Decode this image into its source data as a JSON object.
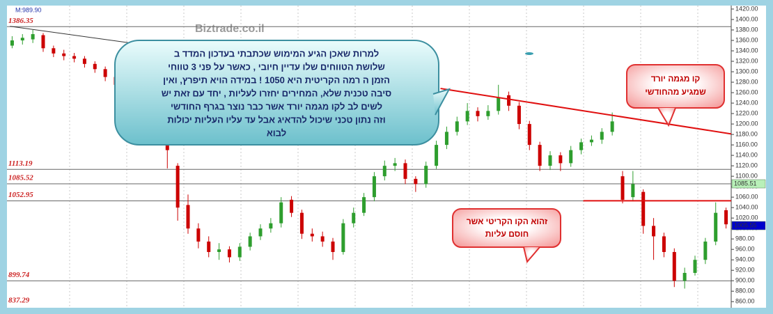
{
  "chart_data": {
    "type": "candlestick",
    "info": "M:989.90",
    "watermark": "Biztrade.co.il",
    "up_color": "#2e9e2e",
    "down_color": "#cc0000",
    "open": [
      1350,
      1360,
      1362,
      1370,
      1345,
      1335,
      1330,
      1325,
      1315,
      1305,
      1290,
      1275,
      1255,
      1230,
      1205,
      1180,
      1120,
      1045,
      1000,
      975,
      955,
      960,
      945,
      965,
      985,
      1000,
      1010,
      1055,
      1030,
      990,
      985,
      975,
      955,
      1010,
      1030,
      1060,
      1100,
      1120,
      1125,
      1095,
      1085,
      1120,
      1160,
      1185,
      1205,
      1225,
      1215,
      1225,
      1255,
      1235,
      1200,
      1160,
      1120,
      1140,
      1125,
      1150,
      1165,
      1170,
      1185,
      1100,
      1060,
      1070,
      1005,
      985,
      955,
      900,
      915,
      940,
      975,
      1035
    ],
    "high": [
      1368,
      1372,
      1380,
      1374,
      1350,
      1342,
      1336,
      1330,
      1320,
      1310,
      1296,
      1280,
      1262,
      1238,
      1212,
      1186,
      1125,
      1065,
      1010,
      985,
      972,
      966,
      972,
      992,
      1008,
      1020,
      1060,
      1062,
      1036,
      1000,
      994,
      982,
      1018,
      1040,
      1068,
      1108,
      1130,
      1135,
      1132,
      1100,
      1128,
      1168,
      1195,
      1214,
      1240,
      1232,
      1236,
      1275,
      1262,
      1242,
      1206,
      1166,
      1148,
      1146,
      1158,
      1172,
      1178,
      1192,
      1222,
      1110,
      1110,
      1075,
      1020,
      992,
      962,
      925,
      948,
      982,
      1050,
      1040
    ],
    "low": [
      1345,
      1352,
      1355,
      1338,
      1328,
      1322,
      1318,
      1308,
      1298,
      1282,
      1268,
      1248,
      1222,
      1198,
      1170,
      1115,
      1015,
      990,
      962,
      945,
      940,
      935,
      938,
      958,
      978,
      992,
      1002,
      1022,
      980,
      975,
      965,
      940,
      950,
      1002,
      1024,
      1052,
      1092,
      1110,
      1085,
      1070,
      1078,
      1114,
      1152,
      1178,
      1198,
      1205,
      1208,
      1218,
      1225,
      1190,
      1150,
      1110,
      1112,
      1110,
      1118,
      1142,
      1158,
      1162,
      1178,
      1048,
      1052,
      990,
      940,
      945,
      888,
      885,
      910,
      932,
      968,
      1000
    ],
    "close": [
      1360,
      1365,
      1372,
      1345,
      1335,
      1330,
      1325,
      1315,
      1305,
      1290,
      1275,
      1255,
      1230,
      1205,
      1180,
      1150,
      1040,
      1000,
      975,
      955,
      960,
      945,
      965,
      985,
      1000,
      1010,
      1050,
      1030,
      990,
      985,
      975,
      955,
      1010,
      1030,
      1060,
      1100,
      1120,
      1125,
      1095,
      1085,
      1120,
      1160,
      1185,
      1205,
      1225,
      1215,
      1225,
      1250,
      1235,
      1200,
      1160,
      1120,
      1140,
      1125,
      1150,
      1165,
      1170,
      1185,
      1205,
      1055,
      1085,
      1005,
      985,
      955,
      900,
      915,
      940,
      975,
      1030,
      1008
    ],
    "ylim": [
      851,
      1424
    ],
    "yticks": [
      {
        "value": 1420,
        "label": "1420.00"
      },
      {
        "value": 1400,
        "label": "1400.00"
      },
      {
        "value": 1380,
        "label": "1380.00"
      },
      {
        "value": 1360,
        "label": "1360.00"
      },
      {
        "value": 1340,
        "label": "1340.00"
      },
      {
        "value": 1320,
        "label": "1320.00"
      },
      {
        "value": 1300,
        "label": "1300.00"
      },
      {
        "value": 1280,
        "label": "1280.00"
      },
      {
        "value": 1260,
        "label": "1260.00"
      },
      {
        "value": 1240,
        "label": "1240.00"
      },
      {
        "value": 1220,
        "label": "1220.00"
      },
      {
        "value": 1200,
        "label": "1200.00"
      },
      {
        "value": 1180,
        "label": "1180.00"
      },
      {
        "value": 1160,
        "label": "1160.00"
      },
      {
        "value": 1140,
        "label": "1140.00"
      },
      {
        "value": 1120,
        "label": "1120.00"
      },
      {
        "value": 1100,
        "label": "1100.00"
      },
      {
        "value": 1080,
        "label": "1080.00"
      },
      {
        "value": 1060,
        "label": "1060.00"
      },
      {
        "value": 1040,
        "label": "1040.00"
      },
      {
        "value": 1020,
        "label": "1020.00"
      },
      {
        "value": 1000,
        "label": "1000.00"
      },
      {
        "value": 980,
        "label": "980.00"
      },
      {
        "value": 960,
        "label": "960.00"
      },
      {
        "value": 940,
        "label": "940.00"
      },
      {
        "value": 920,
        "label": "920.00"
      },
      {
        "value": 900,
        "label": "900.00"
      },
      {
        "value": 880,
        "label": "880.00"
      },
      {
        "value": 860,
        "label": "860.00"
      }
    ],
    "levels": [
      1386.35,
      1113.19,
      1085.52,
      1052.95,
      899.74,
      837.29
    ],
    "price_markers": [
      {
        "value": 1085.51,
        "color": "#b8f0b8",
        "text_color": "#003300"
      },
      {
        "value": 1005.55,
        "color": "#0000cc",
        "text_color": "#ffffff"
      }
    ],
    "trendlines": [
      {
        "color": "#333333",
        "x": [
          -0.2,
          13.3
        ],
        "y": [
          1387,
          1350
        ]
      },
      {
        "color": "#e01010",
        "x": [
          41.4,
          69.5
        ],
        "y": [
          1268,
          1181
        ]
      },
      {
        "color": "#e01010",
        "x": [
          55.2,
          69.5
        ],
        "y": [
          1053,
          1053
        ]
      }
    ],
    "annotations": [
      {
        "lines": [
          "למרות שאכן הגיע המימוש שכתבתי בעדכון המדד ב",
          "שלושת הטווחים שלו עדיין חיובי , כאשר על פני 3 טווחי",
          "הזמן ה רמה הקריטית היא 1050 ! במידה הויא תיפרץ, ואין",
          "סיבה טכנית שלא, המחירים יחזרו לעליות , יחד עם זאת יש",
          "לשים לב לקו מגמה יורד אשר כבר נוצר בגרף החודשי",
          "וזה נתון טכני שיכול להדאיג אבל עד עליו העליות יכולות",
          "לבוא"
        ]
      },
      {
        "lines": [
          "קו מגמה יורד",
          "שמגיע מהחודשי"
        ]
      },
      {
        "lines": [
          "זהוא הקו הקריטי אשר",
          "חוסם עליות"
        ]
      }
    ]
  }
}
